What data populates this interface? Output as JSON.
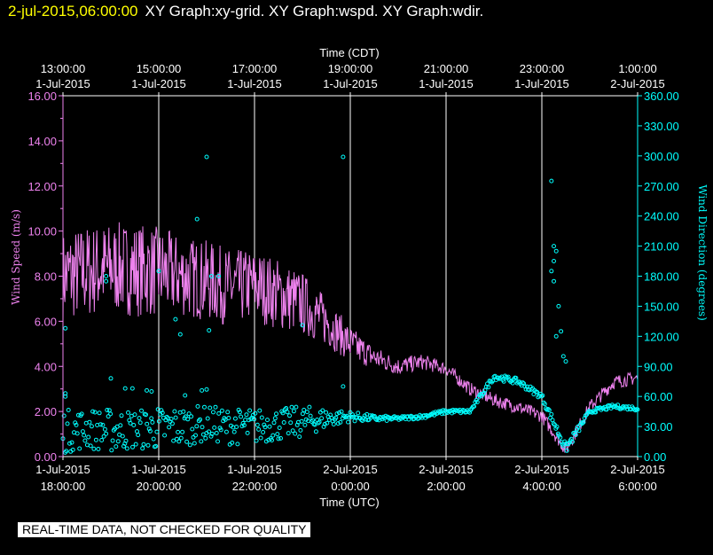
{
  "header": {
    "time": "2-jul-2015,06:00:00",
    "titles": "XY Graph:xy-grid.  XY Graph:wspd.  XY Graph:wdir."
  },
  "notice": "REAL-TIME DATA, NOT CHECKED FOR QUALITY",
  "colors": {
    "background": "#000000",
    "wind_speed": "#ee82ee",
    "wind_direction": "#00ffff",
    "grid": "#ffffff",
    "header_time": "#ffff00"
  },
  "chart_data": {
    "type": "line",
    "top_axis": {
      "title": "Time (CDT)",
      "ticks": [
        {
          "time": "13:00:00",
          "date": "1-Jul-2015"
        },
        {
          "time": "15:00:00",
          "date": "1-Jul-2015"
        },
        {
          "time": "17:00:00",
          "date": "1-Jul-2015"
        },
        {
          "time": "19:00:00",
          "date": "1-Jul-2015"
        },
        {
          "time": "21:00:00",
          "date": "1-Jul-2015"
        },
        {
          "time": "23:00:00",
          "date": "1-Jul-2015"
        },
        {
          "time": "1:00:00",
          "date": "2-Jul-2015"
        }
      ]
    },
    "bottom_axis": {
      "title": "Time (UTC)",
      "range": [
        "1-Jul-2015 18:00:00",
        "2-Jul-2015 6:00:00"
      ],
      "ticks": [
        {
          "date": "1-Jul-2015",
          "time": "18:00:00"
        },
        {
          "date": "1-Jul-2015",
          "time": "20:00:00"
        },
        {
          "date": "1-Jul-2015",
          "time": "22:00:00"
        },
        {
          "date": "2-Jul-2015",
          "time": "0:00:00"
        },
        {
          "date": "2-Jul-2015",
          "time": "2:00:00"
        },
        {
          "date": "2-Jul-2015",
          "time": "4:00:00"
        },
        {
          "date": "2-Jul-2015",
          "time": "6:00:00"
        }
      ]
    },
    "left_axis": {
      "label": "Wind Speed (m/s)",
      "range": [
        0,
        16
      ],
      "ticks": [
        "0.00",
        "2.00",
        "4.00",
        "6.00",
        "8.00",
        "10.00",
        "12.00",
        "14.00",
        "16.00"
      ]
    },
    "right_axis": {
      "label": "Wind Direction (degrees)",
      "range": [
        0,
        360
      ],
      "ticks": [
        "0.00",
        "30.00",
        "60.00",
        "90.00",
        "120.00",
        "150.00",
        "180.00",
        "210.00",
        "240.00",
        "270.00",
        "300.00",
        "330.00",
        "360.00"
      ]
    },
    "grid": "vertical lines at bottom-axis ticks",
    "series": [
      {
        "type": "line",
        "axis": "left",
        "color": "#ee82ee",
        "x_unit": "hours after 1-Jul-2015 18:00 UTC",
        "x": [
          0,
          0.5,
          1,
          1.5,
          2,
          2.5,
          3,
          3.5,
          4,
          4.5,
          5,
          5.5,
          6,
          6.5,
          7,
          7.5,
          8,
          8.5,
          9,
          9.5,
          10,
          10.5,
          11,
          11.5,
          12
        ],
        "y": [
          8.0,
          8.2,
          8.4,
          8.3,
          8.2,
          8.0,
          7.8,
          7.5,
          7.6,
          7.2,
          6.8,
          6.0,
          5.0,
          4.4,
          4.0,
          4.2,
          3.9,
          3.0,
          2.5,
          2.2,
          1.8,
          0.3,
          2.2,
          3.3,
          3.5
        ],
        "noise": [
          2.0,
          2.1,
          2.0,
          2.1,
          2.0,
          1.8,
          1.8,
          1.7,
          1.6,
          1.6,
          1.4,
          1.1,
          0.8,
          0.5,
          0.4,
          0.35,
          0.3,
          0.3,
          0.3,
          0.3,
          0.3,
          0.3,
          0.3,
          0.3,
          0.3
        ]
      },
      {
        "type": "scatter",
        "axis": "right",
        "color": "#00ffff",
        "x_unit": "hours after 1-Jul-2015 18:00 UTC",
        "x": [
          0,
          0.5,
          1,
          1.5,
          2,
          2.5,
          3,
          3.5,
          4,
          4.5,
          5,
          5.5,
          6,
          6.5,
          7,
          7.5,
          8,
          8.5,
          9,
          9.5,
          10,
          10.5,
          11,
          11.5,
          12
        ],
        "y": [
          25,
          28,
          26,
          27,
          28,
          30,
          33,
          30,
          30,
          32,
          35,
          38,
          40,
          38,
          38,
          40,
          45,
          45,
          80,
          75,
          60,
          8,
          45,
          50,
          48
        ],
        "noise": [
          22,
          20,
          22,
          20,
          22,
          20,
          18,
          18,
          18,
          16,
          16,
          10,
          5,
          3,
          2,
          2,
          2,
          2,
          3,
          3,
          3,
          5,
          2,
          2,
          2
        ],
        "outliers": [
          {
            "x": 0.05,
            "y": 60
          },
          {
            "x": 0.05,
            "y": 63
          },
          {
            "x": 0.05,
            "y": 128
          },
          {
            "x": 0.9,
            "y": 180
          },
          {
            "x": 0.9,
            "y": 175
          },
          {
            "x": 1.0,
            "y": 78
          },
          {
            "x": 1.3,
            "y": 68
          },
          {
            "x": 1.45,
            "y": 68
          },
          {
            "x": 1.75,
            "y": 66
          },
          {
            "x": 1.85,
            "y": 65
          },
          {
            "x": 2.0,
            "y": 185
          },
          {
            "x": 2.35,
            "y": 137
          },
          {
            "x": 2.45,
            "y": 122
          },
          {
            "x": 2.55,
            "y": 61
          },
          {
            "x": 2.8,
            "y": 237
          },
          {
            "x": 2.9,
            "y": 66
          },
          {
            "x": 3.0,
            "y": 67
          },
          {
            "x": 3.05,
            "y": 126
          },
          {
            "x": 3.0,
            "y": 299
          },
          {
            "x": 3.1,
            "y": 180
          },
          {
            "x": 3.25,
            "y": 180
          },
          {
            "x": 5.0,
            "y": 131
          },
          {
            "x": 5.85,
            "y": 299
          },
          {
            "x": 5.85,
            "y": 70
          },
          {
            "x": 10.2,
            "y": 275
          },
          {
            "x": 10.25,
            "y": 210
          },
          {
            "x": 10.3,
            "y": 205
          },
          {
            "x": 10.25,
            "y": 195
          },
          {
            "x": 10.2,
            "y": 185
          },
          {
            "x": 10.25,
            "y": 175
          },
          {
            "x": 10.35,
            "y": 150
          },
          {
            "x": 10.3,
            "y": 120
          },
          {
            "x": 10.4,
            "y": 125
          },
          {
            "x": 10.45,
            "y": 100
          },
          {
            "x": 10.5,
            "y": 95
          }
        ]
      }
    ]
  }
}
